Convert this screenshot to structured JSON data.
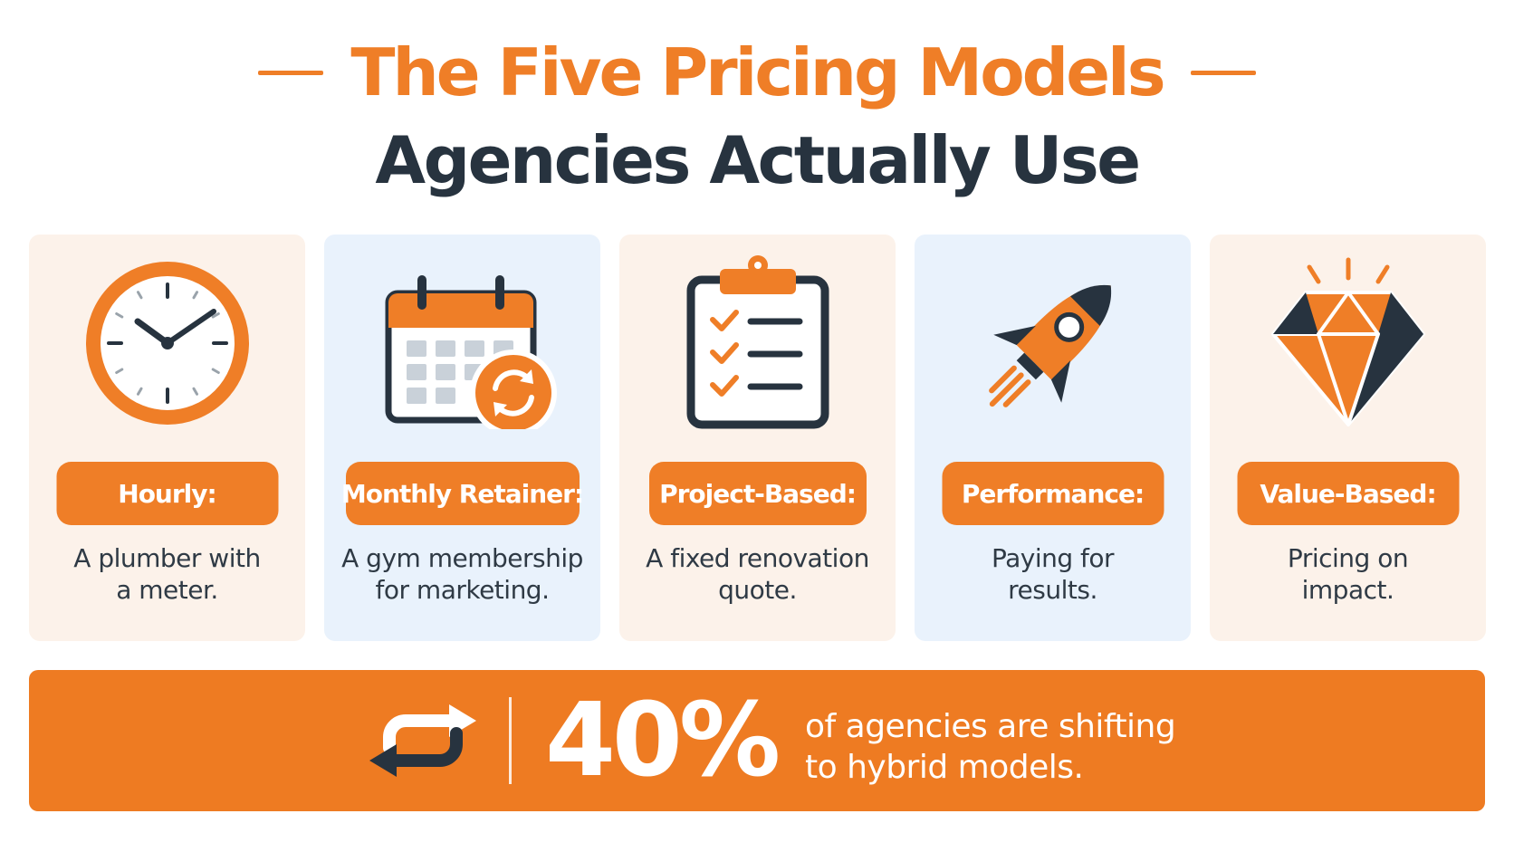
{
  "header": {
    "title_line1": "The Five Pricing Models",
    "title_line2": "Agencies Actually Use"
  },
  "colors": {
    "accent": "#ef7e27",
    "dark": "#27333f",
    "card_warm": "#fcf2ea",
    "card_cool": "#e9f2fc"
  },
  "cards": [
    {
      "label": "Hourly:",
      "desc1": "A plumber with",
      "desc2": "a meter.",
      "icon": "clock-icon"
    },
    {
      "label": "Monthly Retainer:",
      "desc1": "A gym membership",
      "desc2": "for marketing.",
      "icon": "calendar-refresh-icon"
    },
    {
      "label": "Project-Based:",
      "desc1": "A fixed renovation",
      "desc2": "quote.",
      "icon": "clipboard-checklist-icon"
    },
    {
      "label": "Performance:",
      "desc1": "Paying for",
      "desc2": "results.",
      "icon": "rocket-icon"
    },
    {
      "label": "Value-Based:",
      "desc1": "Pricing on",
      "desc2": "impact.",
      "icon": "diamond-icon"
    }
  ],
  "banner": {
    "stat": "40%",
    "text1": "of agencies are shifting",
    "text2": "to hybrid models.",
    "icon": "repeat-arrows-icon"
  }
}
